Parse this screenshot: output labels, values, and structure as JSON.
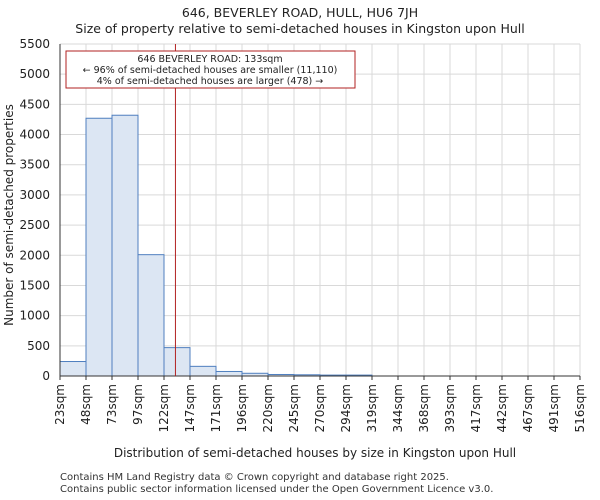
{
  "title_line1": "646, BEVERLEY ROAD, HULL, HU6 7JH",
  "title_line2": "Size of property relative to semi-detached houses in Kingston upon Hull",
  "footer_line1": "Contains HM Land Registry data © Crown copyright and database right 2025.",
  "footer_line2": "Contains public sector information licensed under the Open Government Licence v3.0.",
  "colors": {
    "bar_fill": "#dce6f3",
    "bar_edge": "#4f7fbf",
    "marker_line": "#b22222",
    "annotation_border": "#b22222",
    "grid": "#d9d9d9"
  },
  "chart_data": {
    "type": "bar",
    "title": "Size of property relative to semi-detached houses in Kingston upon Hull",
    "xlabel": "Distribution of semi-detached houses by size in Kingston upon Hull",
    "ylabel": "Number of semi-detached properties",
    "x_tick_labels": [
      "23sqm",
      "48sqm",
      "73sqm",
      "97sqm",
      "122sqm",
      "147sqm",
      "171sqm",
      "196sqm",
      "220sqm",
      "245sqm",
      "270sqm",
      "294sqm",
      "319sqm",
      "344sqm",
      "368sqm",
      "393sqm",
      "417sqm",
      "442sqm",
      "467sqm",
      "491sqm",
      "516sqm"
    ],
    "bin_edges": [
      23,
      48,
      73,
      97,
      122,
      147,
      171,
      196,
      220,
      245,
      270,
      294,
      319,
      344,
      368,
      393,
      417,
      442,
      467,
      491,
      516
    ],
    "values": [
      240,
      4270,
      4320,
      2010,
      470,
      160,
      75,
      45,
      25,
      20,
      15,
      15,
      0,
      0,
      0,
      0,
      0,
      0,
      0,
      0
    ],
    "ylim": [
      0,
      5500
    ],
    "yticks": [
      0,
      500,
      1000,
      1500,
      2000,
      2500,
      3000,
      3500,
      4000,
      4500,
      5000,
      5500
    ],
    "grid": true,
    "property_marker": {
      "value": 133,
      "label": "646 BEVERLEY ROAD: 133sqm",
      "line1": "← 96% of semi-detached houses are smaller (11,110)",
      "line2": "4% of semi-detached houses are larger (478) →"
    }
  }
}
